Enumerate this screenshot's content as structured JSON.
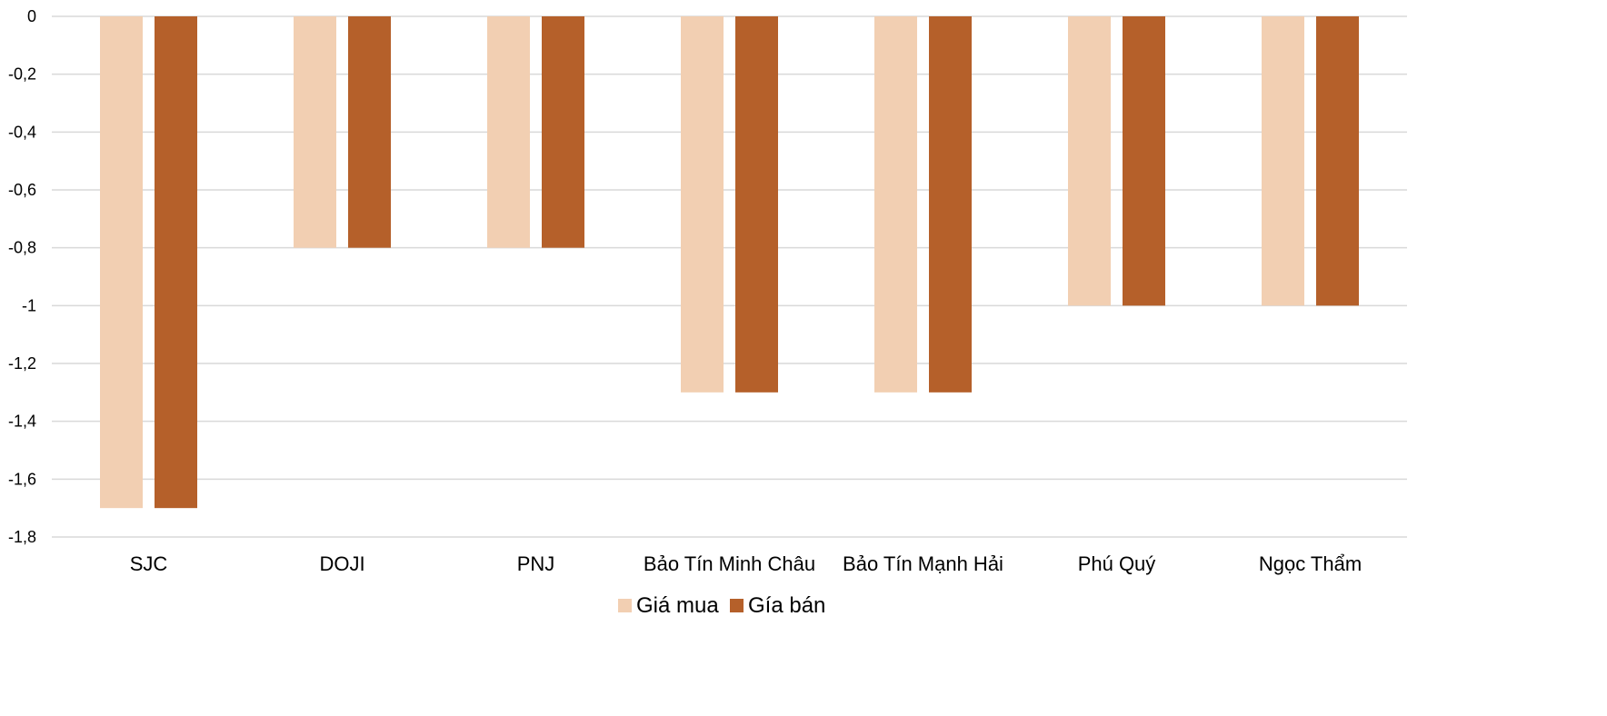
{
  "chart_data": {
    "type": "bar",
    "title": "",
    "xlabel": "",
    "ylabel": "",
    "categories": [
      "SJC",
      "DOJI",
      "PNJ",
      "Bảo Tín Minh Châu",
      "Bảo Tín Mạnh Hải",
      "Phú Quý",
      "Ngọc Thẩm"
    ],
    "series": [
      {
        "name": "Giá mua",
        "color": "#f2cfb2",
        "values": [
          -1.7,
          -0.8,
          -0.8,
          -1.3,
          -1.3,
          -1.0,
          -1.0
        ]
      },
      {
        "name": "Gía bán",
        "color": "#b5602a",
        "values": [
          -1.7,
          -0.8,
          -0.8,
          -1.3,
          -1.3,
          -1.0,
          -1.0
        ]
      }
    ],
    "ylim": [
      -1.8,
      0
    ],
    "yticks": [
      0,
      -0.2,
      -0.4,
      -0.6,
      -0.8,
      -1,
      -1.2,
      -1.4,
      -1.6,
      -1.8
    ],
    "ytick_labels": [
      "0",
      "-0,2",
      "-0,4",
      "-0,6",
      "-0,8",
      "-1",
      "-1,2",
      "-1,4",
      "-1,6",
      "-1,8"
    ],
    "grid": true,
    "legend_position": "bottom"
  }
}
